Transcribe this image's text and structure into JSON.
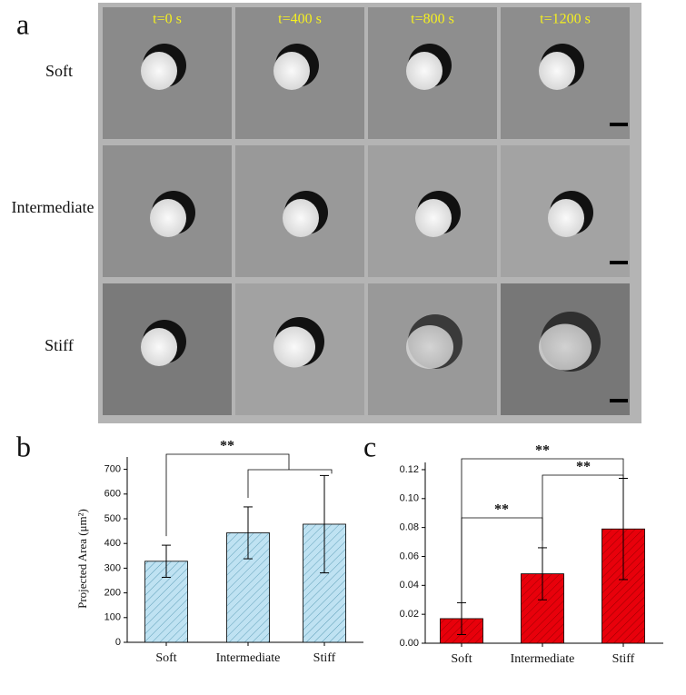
{
  "panel_labels": [
    "a",
    "b",
    "c"
  ],
  "image_panel": {
    "time_labels": [
      "t=0 s",
      "t=400 s",
      "t=800 s",
      "t=1200 s"
    ],
    "row_labels": [
      "Soft",
      "Intermediate",
      "Stiff"
    ]
  },
  "chart_data": [
    {
      "type": "bar",
      "y_label": "Projected Area (μm²)",
      "categories": [
        "Soft",
        "Intermediate",
        "Stiff"
      ],
      "values": [
        328,
        443,
        478
      ],
      "errors": [
        65,
        105,
        197
      ],
      "color": "#bfe2f2",
      "ylim": [
        0,
        750
      ],
      "yticks": [
        0,
        100,
        200,
        300,
        400,
        500,
        600,
        700
      ],
      "annotations": [
        "**"
      ]
    },
    {
      "type": "bar",
      "categories": [
        "Soft",
        "Intermediate",
        "Stiff"
      ],
      "values": [
        0.017,
        0.048,
        0.079
      ],
      "errors": [
        0.011,
        0.018,
        0.035
      ],
      "color": "#e8000b",
      "ylim": [
        0,
        0.125
      ],
      "yticks": [
        {
          "value": 0,
          "label": "0.00"
        },
        {
          "value": 0.02,
          "label": "0.02"
        },
        {
          "value": 0.04,
          "label": "0.04"
        },
        {
          "value": 0.06,
          "label": "0.06"
        },
        {
          "value": 0.08,
          "label": "0.08"
        },
        {
          "value": 0.1,
          "label": "0.10"
        },
        {
          "value": 0.12,
          "label": "0.12"
        }
      ],
      "annotations": [
        "**",
        "**",
        "**"
      ]
    }
  ]
}
